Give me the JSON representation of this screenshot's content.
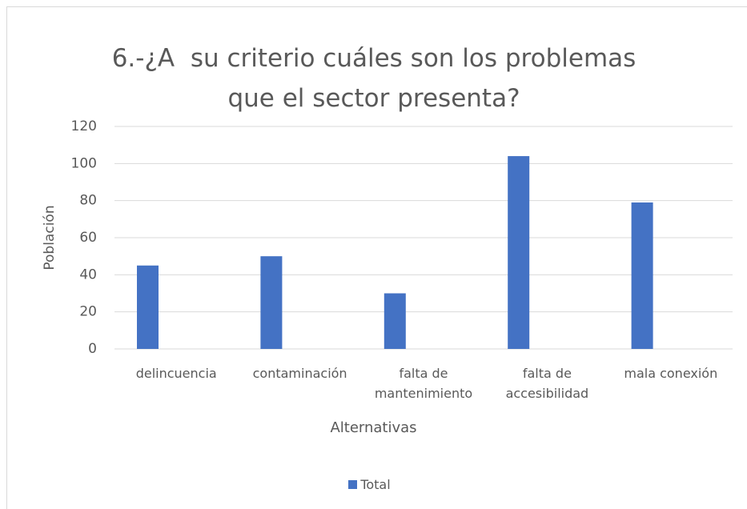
{
  "chart_data": {
    "type": "bar",
    "title": "6.-¿A  su criterio cuáles son los problemas que el sector presenta?",
    "x_label": "Alternativas",
    "y_label": "Población",
    "categories": [
      "delincuencia",
      "contaminación",
      "falta de mantenimiento",
      "falta de accesibilidad",
      "mala conexión"
    ],
    "series": [
      {
        "name": "Total",
        "color": "#4472c4",
        "values": [
          45,
          50,
          30,
          104,
          79
        ]
      }
    ],
    "ylim": [
      0,
      120
    ],
    "yticks": [
      0,
      20,
      40,
      60,
      80,
      100,
      120
    ],
    "grid": true,
    "legend": "bottom"
  }
}
